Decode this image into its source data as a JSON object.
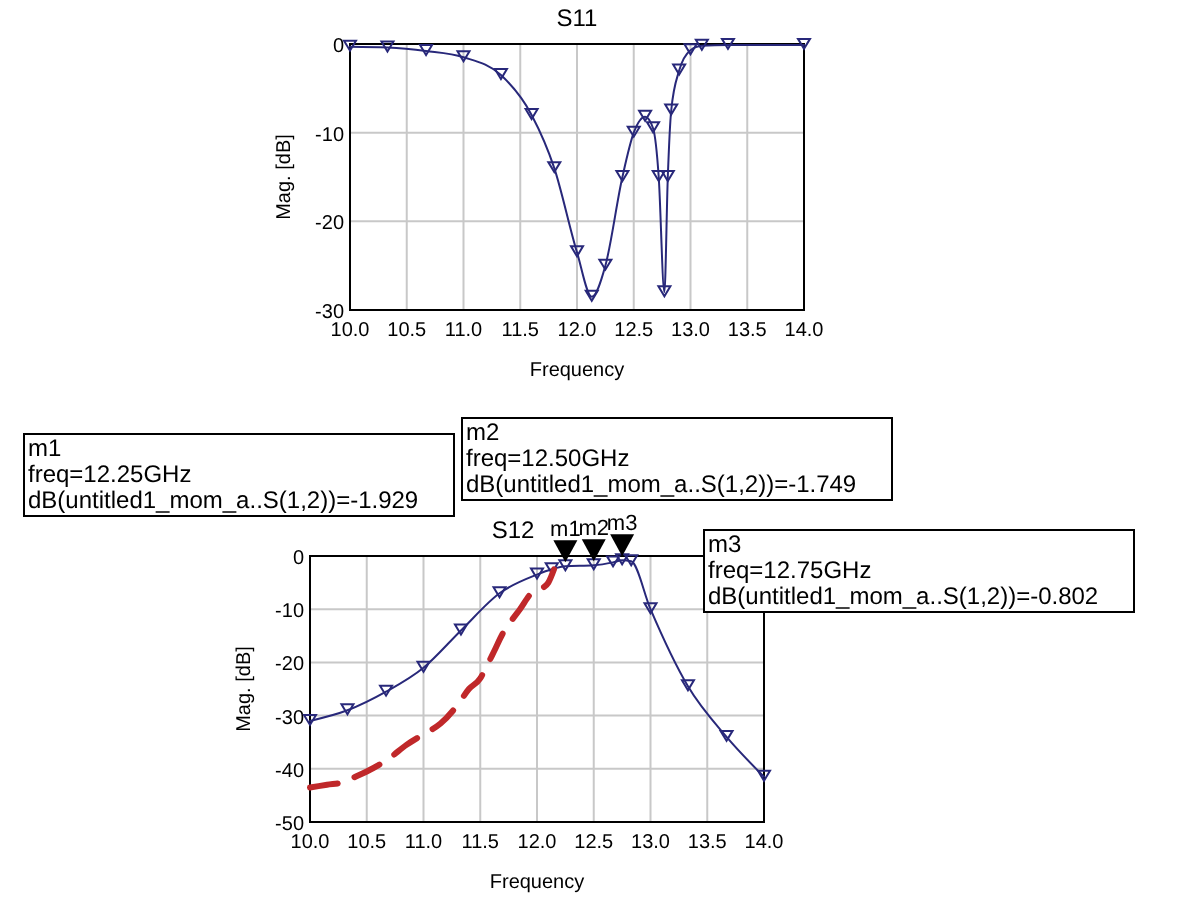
{
  "chart_data": [
    {
      "type": "line",
      "title": "S11",
      "xlabel": "Frequency",
      "ylabel": "Mag. [dB]",
      "xlim": [
        10,
        14
      ],
      "ylim": [
        -30,
        0
      ],
      "xticks": [
        {
          "value": 10,
          "label": "10.0"
        },
        {
          "value": 10.5,
          "label": "10.5"
        },
        {
          "value": 11,
          "label": "11.0"
        },
        {
          "value": 11.5,
          "label": "11.5"
        },
        {
          "value": 12,
          "label": "12.0"
        },
        {
          "value": 12.5,
          "label": "12.5"
        },
        {
          "value": 13,
          "label": "13.0"
        },
        {
          "value": 13.5,
          "label": "13.5"
        },
        {
          "value": 14,
          "label": "14.0"
        }
      ],
      "yticks": [
        -30,
        -20,
        -10,
        0
      ],
      "grid": true,
      "marker": "triangle",
      "series": [
        {
          "color": "#28287a",
          "x": [
            10,
            10.33,
            10.67,
            11,
            11.33,
            11.6,
            11.8,
            12,
            12.13,
            12.25,
            12.4,
            12.5,
            12.6,
            12.67,
            12.72,
            12.77,
            12.8,
            12.83,
            12.9,
            13,
            13.1,
            13.33,
            14
          ],
          "values": [
            -0.3,
            -0.4,
            -0.8,
            -1.5,
            -3.5,
            -8,
            -14,
            -23.5,
            -28.5,
            -25,
            -15,
            -10,
            -8.2,
            -9.5,
            -15,
            -28,
            -15,
            -7.5,
            -3,
            -0.7,
            -0.2,
            -0.1,
            -0.1
          ]
        }
      ]
    },
    {
      "type": "line",
      "title": "S12",
      "xlabel": "Frequency",
      "ylabel": "Mag. [dB]",
      "xlim": [
        10,
        14
      ],
      "ylim": [
        -50,
        0
      ],
      "xticks": [
        {
          "value": 10,
          "label": "10.0"
        },
        {
          "value": 10.5,
          "label": "10.5"
        },
        {
          "value": 11,
          "label": "11.0"
        },
        {
          "value": 11.5,
          "label": "11.5"
        },
        {
          "value": 12,
          "label": "12.0"
        },
        {
          "value": 12.5,
          "label": "12.5"
        },
        {
          "value": 13,
          "label": "13.0"
        },
        {
          "value": 13.5,
          "label": "13.5"
        },
        {
          "value": 14,
          "label": "14.0"
        }
      ],
      "yticks": [
        -50,
        -40,
        -30,
        -20,
        -10,
        0
      ],
      "grid": true,
      "marker": "triangle",
      "series": [
        {
          "color": "#28287a",
          "x": [
            10,
            10.33,
            10.67,
            11,
            11.33,
            11.67,
            12,
            12.13,
            12.25,
            12.5,
            12.67,
            12.75,
            12.83,
            13,
            13.33,
            13.67,
            14
          ],
          "values": [
            -31,
            -29,
            -25.5,
            -21,
            -14,
            -7,
            -3.5,
            -2.5,
            -1.929,
            -1.749,
            -1.2,
            -0.802,
            -1,
            -10,
            -24.5,
            -34,
            -41.5
          ]
        },
        {
          "color": "#c0282a",
          "marker": "none",
          "line_style": "dashed",
          "x": [
            10,
            10.15,
            10.3,
            10.4,
            10.5,
            10.7,
            10.85,
            11,
            11.15,
            11.3,
            11.4,
            11.5,
            11.55,
            11.62,
            11.7,
            11.78,
            11.85,
            11.95,
            12.05,
            12.1,
            12.15
          ],
          "values": [
            -43.5,
            -43,
            -42.5,
            -41.5,
            -40.5,
            -38,
            -35.5,
            -33.5,
            -31.5,
            -28,
            -25,
            -23,
            -21,
            -18,
            -14.5,
            -12,
            -10,
            -7,
            -6,
            -5,
            -2.5
          ]
        }
      ],
      "annotations": [
        "m1\nfreq=12.25GHz\ndB(untitled1_mom_a..S(1,2))=-1.929",
        "m2\nfreq=12.50GHz\ndB(untitled1_mom_a..S(1,2))=-1.749",
        "m3\nfreq=12.75GHz\ndB(untitled1_mom_a..S(1,2))=-0.802",
        {
          "text": "m1",
          "x": 12.25,
          "y": -1.929
        },
        {
          "text": "m2",
          "x": 12.5,
          "y": -1.749
        },
        {
          "text": "m3",
          "x": 12.75,
          "y": -0.802
        }
      ]
    }
  ]
}
